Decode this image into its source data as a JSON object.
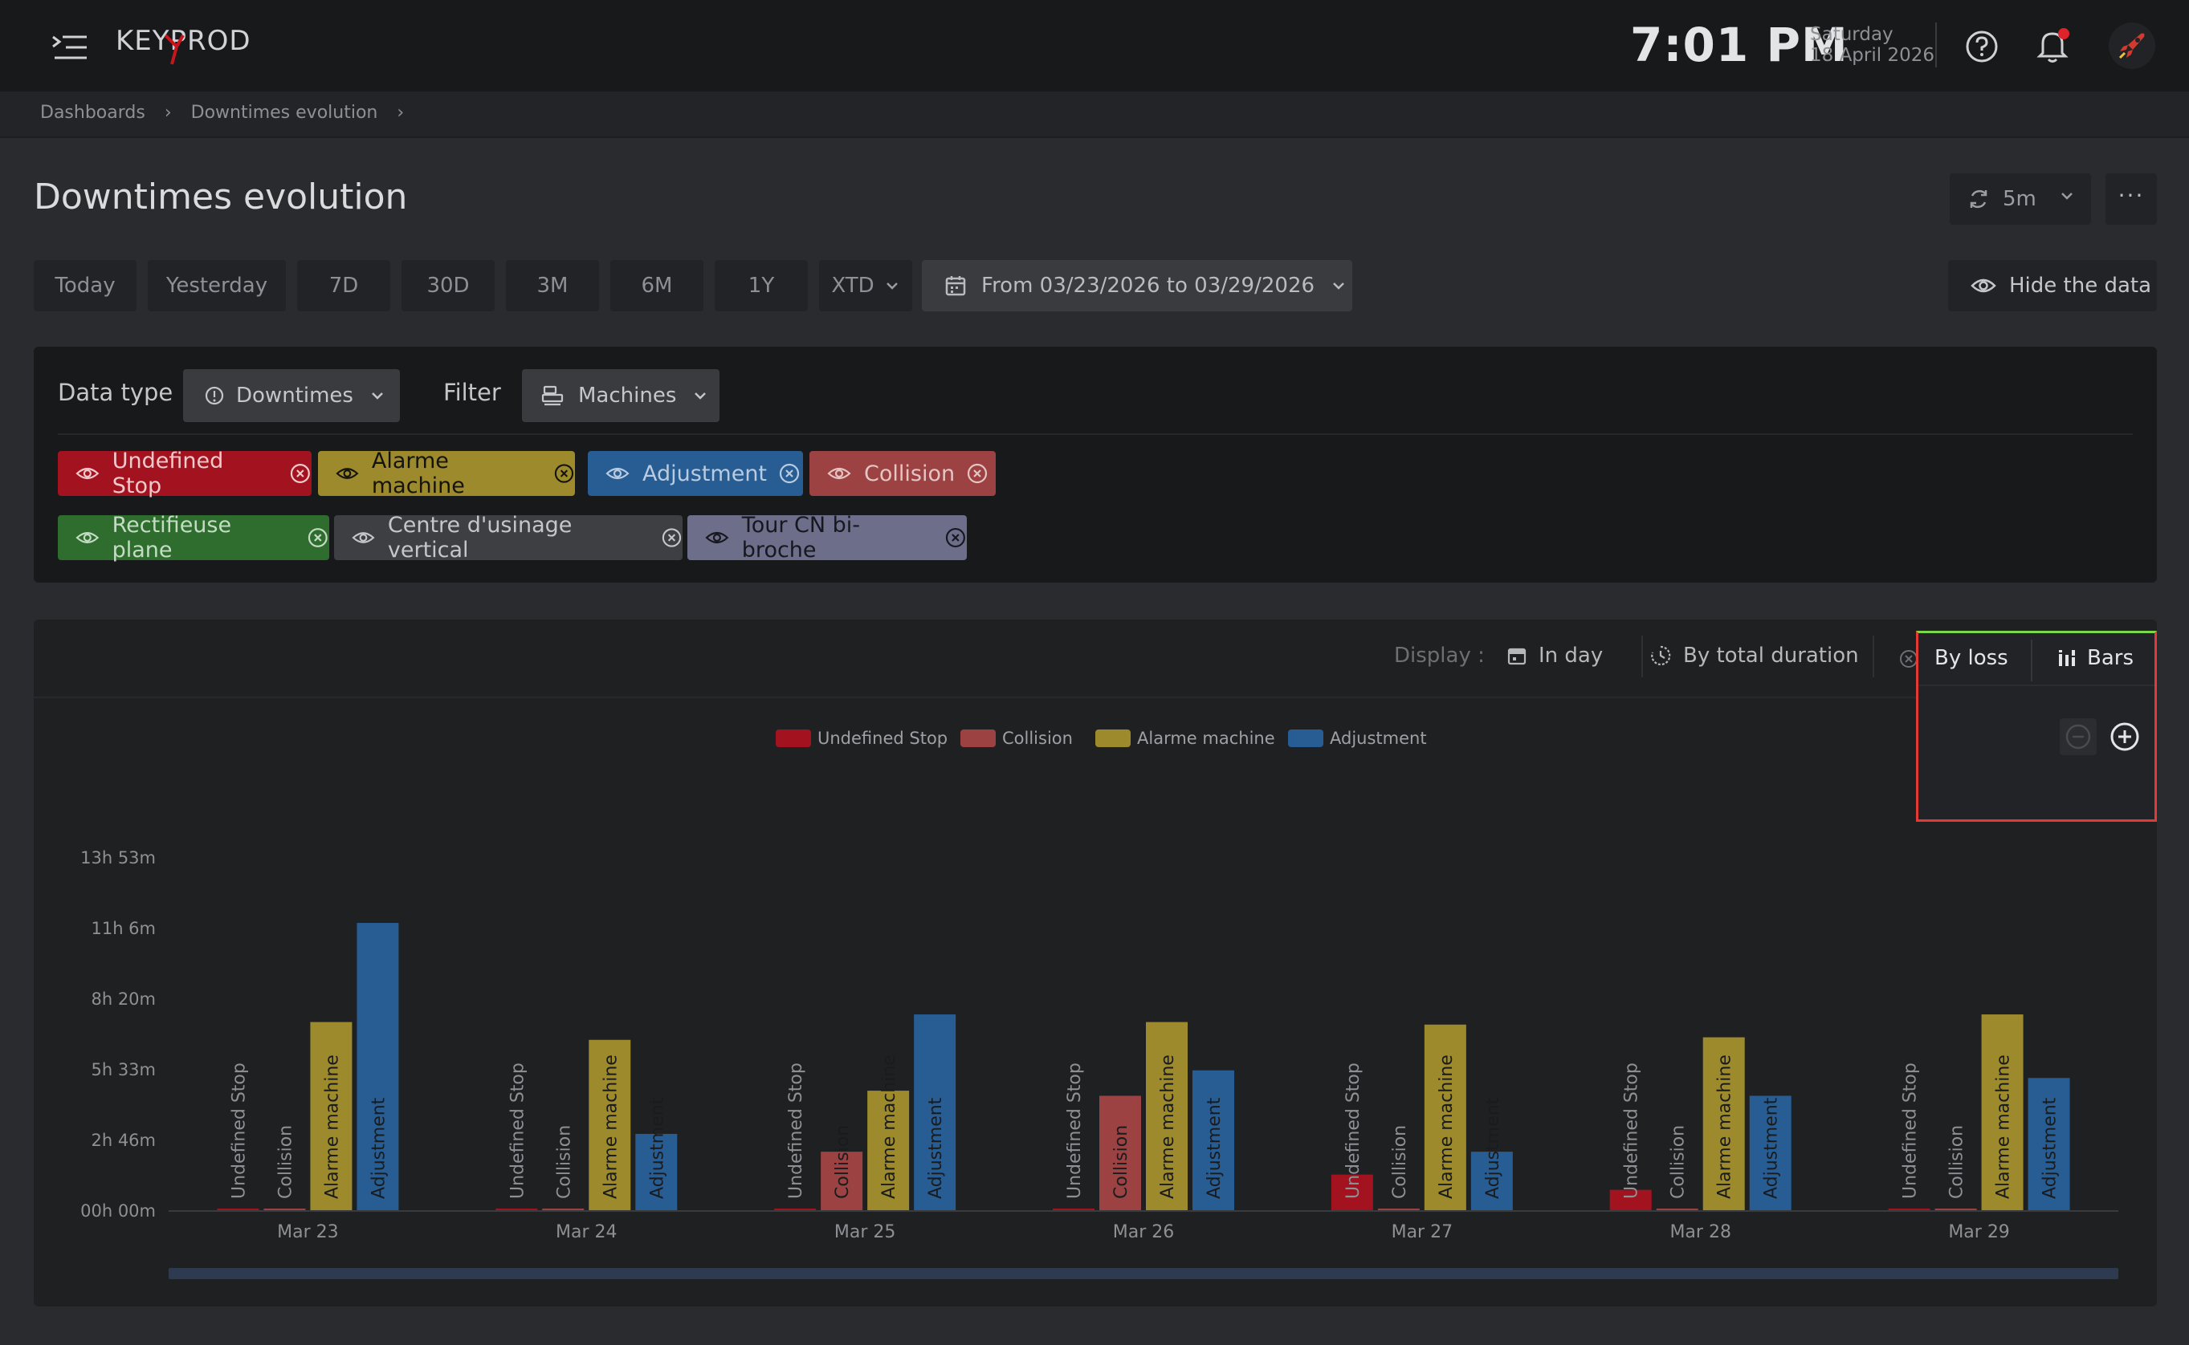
{
  "header": {
    "time": "7:01 PM",
    "weekday": "Saturday",
    "date": "18 April 2026",
    "logo_text": "KEYPROD",
    "icons": [
      "menu-icon",
      "help-icon",
      "bell-icon",
      "rocket-icon"
    ]
  },
  "breadcrumb": [
    "Dashboards",
    "Downtimes evolution"
  ],
  "page": {
    "title": "Downtimes evolution",
    "refresh_label": "5m",
    "more_label": "···"
  },
  "periods": [
    "Today",
    "Yesterday",
    "7D",
    "30D",
    "3M",
    "6M",
    "1Y",
    "XTD"
  ],
  "date_range": "From 03/23/2026 to 03/29/2026",
  "hide_data_label": "Hide the data",
  "filters": {
    "data_type_label": "Data type",
    "data_type_value": "Downtimes",
    "filter_label": "Filter",
    "filter_value": "Machines",
    "tags": [
      {
        "label": "Undefined Stop",
        "color": "#a3131f",
        "text": "#f1c9cc"
      },
      {
        "label": "Alarme machine",
        "color": "#9c8a2d",
        "text": "#15140c"
      },
      {
        "label": "Adjustment",
        "color": "#275d93",
        "text": "#b9cbe0"
      },
      {
        "label": "Collision",
        "color": "#9c4243",
        "text": "#e6c4c4"
      },
      {
        "label": "Rectifieuse plane",
        "color": "#2f6d2f",
        "text": "#c5dcc4"
      },
      {
        "label": "Centre d'usinage vertical",
        "color": "#3e3f43",
        "text": "#c4c6c9"
      },
      {
        "label": "Tour CN bi-broche",
        "color": "#6d6f8a",
        "text": "#16171f"
      }
    ]
  },
  "display": {
    "label": "Display :",
    "in_day": "In day",
    "by_total_duration": "By total duration",
    "by_loss": "By loss",
    "bars": "Bars"
  },
  "chart_data": {
    "type": "bar",
    "categories": [
      "Mar 23",
      "Mar 24",
      "Mar 25",
      "Mar 26",
      "Mar 27",
      "Mar 28",
      "Mar 29"
    ],
    "series": [
      {
        "name": "Undefined Stop",
        "color": "#a3131f",
        "values": [
          0.02,
          0.02,
          0.02,
          0.02,
          1.4,
          0.8,
          0.02
        ]
      },
      {
        "name": "Collision",
        "color": "#9c4243",
        "values": [
          0.02,
          0.02,
          2.3,
          4.5,
          0.02,
          0.02,
          0.02
        ]
      },
      {
        "name": "Alarme machine",
        "color": "#9c8a2d",
        "values": [
          7.4,
          6.7,
          4.7,
          7.4,
          7.3,
          6.8,
          7.7
        ]
      },
      {
        "name": "Adjustment",
        "color": "#275d93",
        "values": [
          11.3,
          3.0,
          7.7,
          5.5,
          2.3,
          4.5,
          5.2
        ]
      }
    ],
    "y_ticks": [
      "00h 00m",
      "2h 46m",
      "5h 33m",
      "8h 20m",
      "11h 6m",
      "13h 53m"
    ],
    "y_tick_values": [
      0,
      2.778,
      5.555,
      8.333,
      11.111,
      13.889
    ],
    "ylim": [
      0,
      13.889
    ],
    "ylabel": "",
    "xlabel": "",
    "legend_position": "top-center"
  }
}
